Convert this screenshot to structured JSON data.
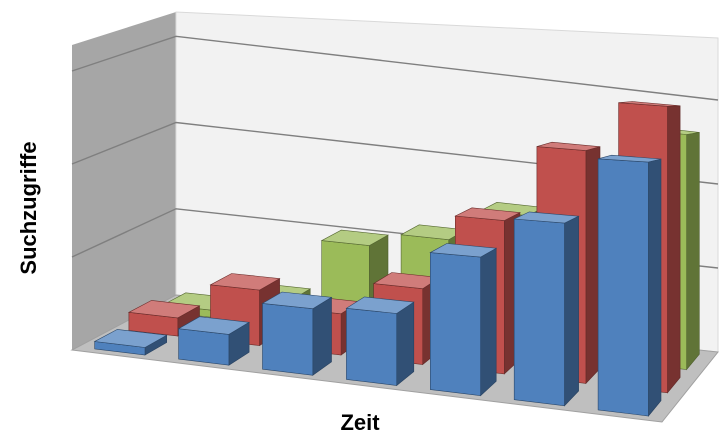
{
  "chart_data": {
    "type": "bar",
    "variant": "3d-column",
    "title": "",
    "xlabel": "Zeit",
    "ylabel": "Suchzugriffe",
    "categories": [
      "",
      "",
      "",
      "",
      "",
      "",
      ""
    ],
    "series": [
      {
        "values": [
          2,
          7,
          25,
          29,
          38,
          52,
          65
        ],
        "color": "#9bbb59"
      },
      {
        "values": [
          5,
          15,
          11,
          20,
          40,
          60,
          73
        ],
        "color": "#c0504d"
      },
      {
        "values": [
          2,
          8,
          17,
          18,
          34,
          44,
          60
        ],
        "color": "#4f81bd"
      }
    ],
    "ylim": [
      0,
      85
    ],
    "grid": true,
    "legend": "none"
  }
}
